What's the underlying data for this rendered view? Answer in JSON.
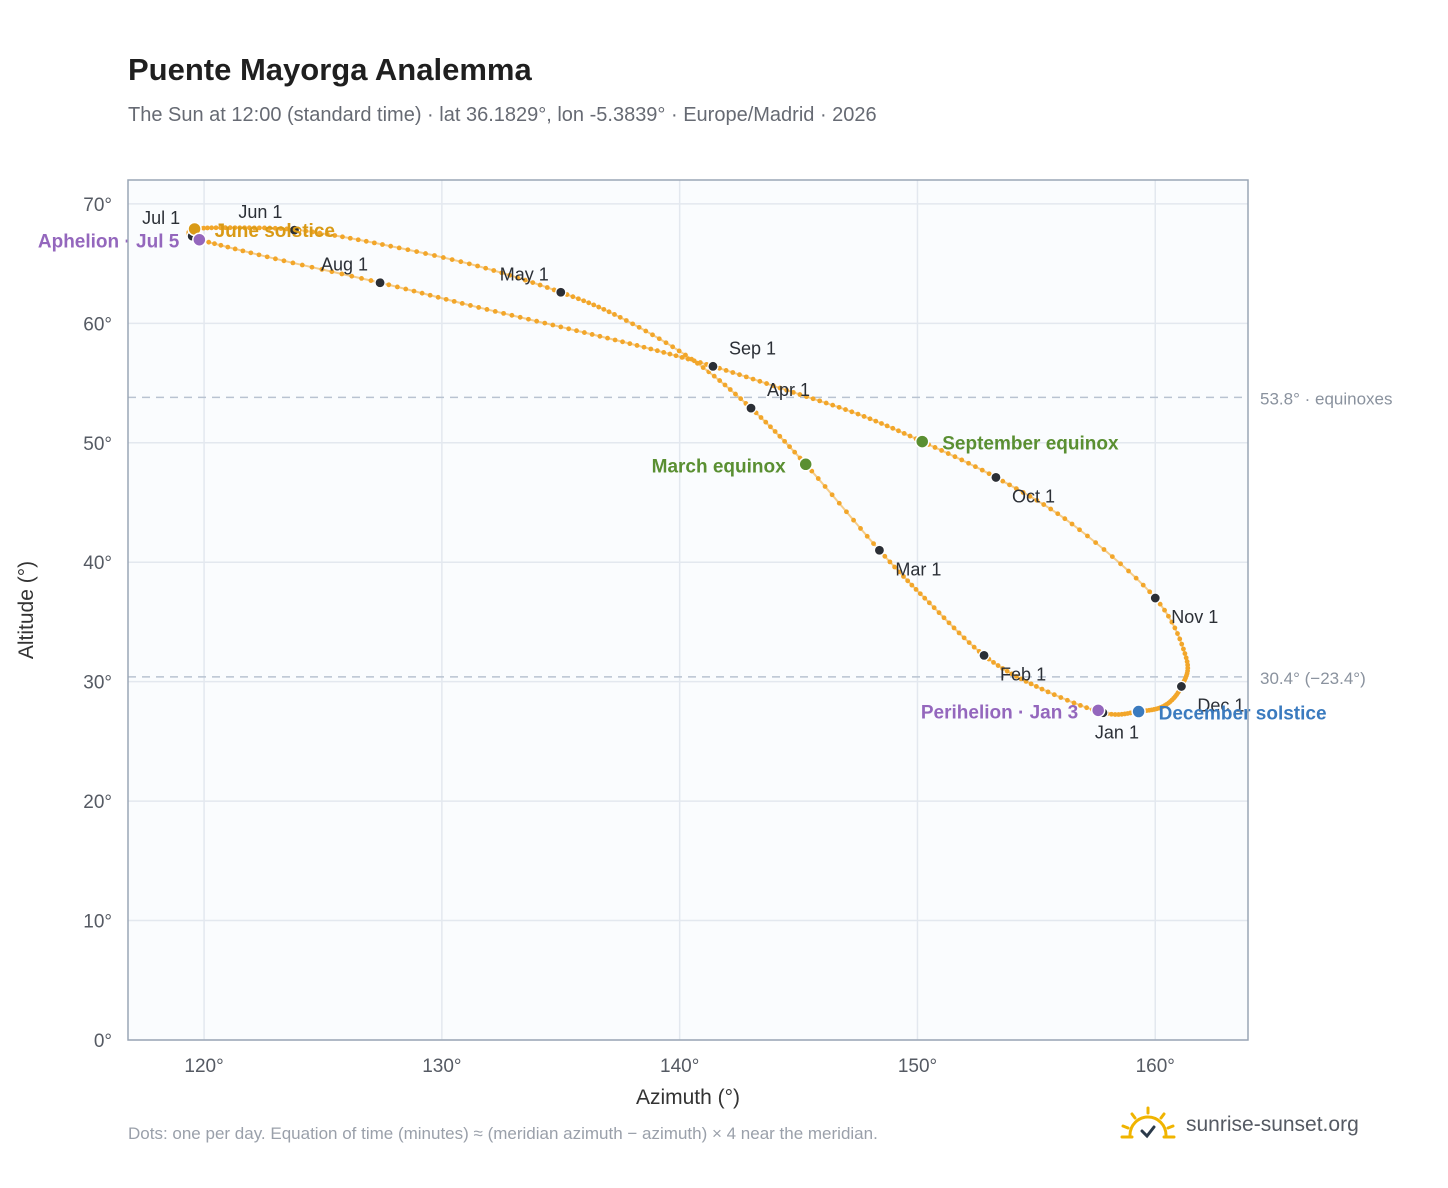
{
  "title": "Puente Mayorga Analemma",
  "subtitle": "The Sun at 12:00 (standard time) · lat 36.1829°, lon -5.3839° · Europe/Madrid · 2026",
  "footnote": "Dots: one per day. Equation of time (minutes) ≈ (meridian azimuth − azimuth) × 4 near the meridian.",
  "brand": {
    "name": "sunrise-sunset.org",
    "icon": "sun-check-icon"
  },
  "colors": {
    "curve": "#f2a62a",
    "month_dot": "#2b2f36",
    "solstice_june": "#d99a16",
    "solstice_december": "#3b7bbf",
    "equinox": "#5a8f32",
    "apsis": "#9467bd",
    "reference_line": "#b9c3d1",
    "plot_bg": "#fafcfe",
    "grid": "#e3e8ef",
    "frame": "#9aa6b5"
  },
  "chart_data": {
    "type": "scatter",
    "title": "Puente Mayorga Analemma",
    "xlabel": "Azimuth (°)",
    "ylabel": "Altitude (°)",
    "xlim": [
      116.8,
      163.9
    ],
    "ylim": [
      0,
      72
    ],
    "x_ticks": [
      120,
      130,
      140,
      150,
      160
    ],
    "x_tick_labels": [
      "120°",
      "130°",
      "140°",
      "150°",
      "160°"
    ],
    "y_ticks": [
      0,
      10,
      20,
      30,
      40,
      50,
      60,
      70
    ],
    "y_tick_labels": [
      "0°",
      "10°",
      "20°",
      "30°",
      "40°",
      "50°",
      "60°",
      "70°"
    ],
    "grid": true,
    "series": [
      {
        "path": [
          [
            157.8,
            27.4
          ],
          [
            155.0,
            29.6
          ],
          [
            152.8,
            32.2
          ],
          [
            150.5,
            36.6
          ],
          [
            148.4,
            41.0
          ],
          [
            145.3,
            48.2
          ],
          [
            143.0,
            52.9
          ],
          [
            140.5,
            57.0
          ],
          [
            137.5,
            60.5
          ],
          [
            135.0,
            62.6
          ],
          [
            131.5,
            64.8
          ],
          [
            127.5,
            66.6
          ],
          [
            124.0,
            67.8
          ],
          [
            121.5,
            68.0
          ],
          [
            119.6,
            67.9
          ],
          [
            119.4,
            67.3
          ],
          [
            119.8,
            67.0
          ],
          [
            123.0,
            65.4
          ],
          [
            127.4,
            63.4
          ],
          [
            131.2,
            61.5
          ],
          [
            135.0,
            59.7
          ],
          [
            138.5,
            58.0
          ],
          [
            141.4,
            56.4
          ],
          [
            144.5,
            54.4
          ],
          [
            147.5,
            52.4
          ],
          [
            150.2,
            50.1
          ],
          [
            153.3,
            47.1
          ],
          [
            156.5,
            43.2
          ],
          [
            160.0,
            37.0
          ],
          [
            161.3,
            32.0
          ],
          [
            161.1,
            29.6
          ],
          [
            160.4,
            28.0
          ],
          [
            159.3,
            27.5
          ],
          [
            157.8,
            27.4
          ]
        ]
      }
    ],
    "month_points": [
      {
        "label": "Jan 1",
        "x": 157.8,
        "y": 27.4,
        "anchor": "below"
      },
      {
        "label": "Feb 1",
        "x": 152.8,
        "y": 32.2,
        "anchor": "right-below"
      },
      {
        "label": "Mar 1",
        "x": 148.4,
        "y": 41.0,
        "anchor": "right-below"
      },
      {
        "label": "Apr 1",
        "x": 143.0,
        "y": 52.9,
        "anchor": "right-above"
      },
      {
        "label": "May 1",
        "x": 135.0,
        "y": 62.6,
        "anchor": "left-above"
      },
      {
        "label": "Jun 1",
        "x": 123.8,
        "y": 67.8,
        "anchor": "left-above"
      },
      {
        "label": "Jul 1",
        "x": 119.5,
        "y": 67.3,
        "anchor": "left-above"
      },
      {
        "label": "Aug 1",
        "x": 127.4,
        "y": 63.4,
        "anchor": "left-above"
      },
      {
        "label": "Sep 1",
        "x": 141.4,
        "y": 56.4,
        "anchor": "right-above"
      },
      {
        "label": "Oct 1",
        "x": 153.3,
        "y": 47.1,
        "anchor": "right-below"
      },
      {
        "label": "Nov 1",
        "x": 160.0,
        "y": 37.0,
        "anchor": "right-below"
      },
      {
        "label": "Dec 1",
        "x": 161.1,
        "y": 29.6,
        "anchor": "right-below"
      }
    ],
    "events": [
      {
        "label": "June solstice",
        "x": 119.6,
        "y": 67.9,
        "color": "#d99a16",
        "side": "right"
      },
      {
        "label": "December solstice",
        "x": 159.3,
        "y": 27.5,
        "color": "#3b7bbf",
        "side": "right"
      },
      {
        "label": "March equinox",
        "x": 145.3,
        "y": 48.2,
        "color": "#5a8f32",
        "side": "left"
      },
      {
        "label": "September equinox",
        "x": 150.2,
        "y": 50.1,
        "color": "#5a8f32",
        "side": "right"
      },
      {
        "label": "Aphelion · Jul 5",
        "x": 119.8,
        "y": 67.0,
        "color": "#9467bd",
        "side": "left"
      },
      {
        "label": "Perihelion · Jan 3",
        "x": 157.6,
        "y": 27.6,
        "color": "#9467bd",
        "side": "left"
      }
    ],
    "reference_lines": [
      {
        "y": 53.8,
        "label": "53.8° · equinoxes"
      },
      {
        "y": 30.4,
        "label": "30.4° (−23.4°)"
      }
    ]
  }
}
